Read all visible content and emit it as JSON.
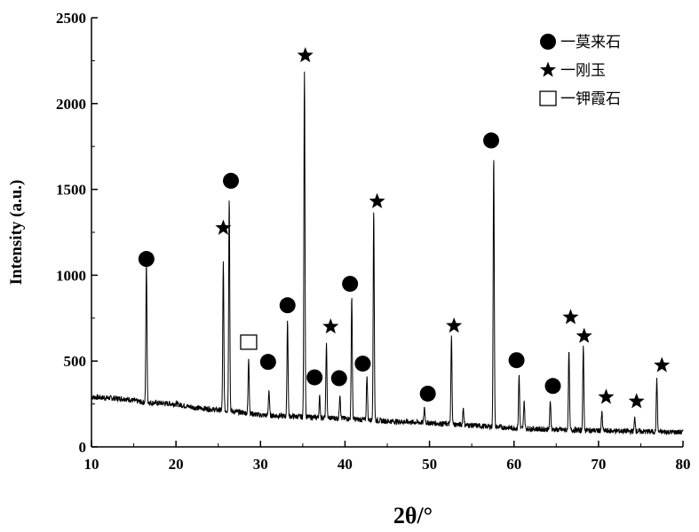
{
  "chart_data": {
    "type": "line",
    "title": "",
    "xlabel": "2θ/°",
    "ylabel": "Intensity (a.u.)",
    "xlim": [
      10,
      80
    ],
    "ylim": [
      0,
      2500
    ],
    "x_ticks": [
      "10",
      "20",
      "30",
      "40",
      "50",
      "60",
      "70",
      "80"
    ],
    "y_ticks": [
      "0",
      "500",
      "1000",
      "1500",
      "2000",
      "2500"
    ],
    "grid": false,
    "legend_position": "top-right",
    "legend": [
      {
        "symbol": "circle",
        "label": "一莫来石"
      },
      {
        "symbol": "star",
        "label": "一刚玉"
      },
      {
        "symbol": "square",
        "label": "一钾霞石"
      }
    ],
    "baseline": [
      [
        10,
        290
      ],
      [
        14,
        280
      ],
      [
        16,
        260
      ],
      [
        20,
        250
      ],
      [
        22,
        230
      ],
      [
        25,
        215
      ],
      [
        28,
        200
      ],
      [
        30,
        185
      ],
      [
        35,
        175
      ],
      [
        40,
        165
      ],
      [
        45,
        150
      ],
      [
        50,
        140
      ],
      [
        55,
        125
      ],
      [
        60,
        110
      ],
      [
        65,
        100
      ],
      [
        70,
        95
      ],
      [
        75,
        90
      ],
      [
        80,
        85
      ]
    ],
    "peaks": [
      {
        "x": 16.5,
        "y": 1070
      },
      {
        "x": 25.6,
        "y": 1070
      },
      {
        "x": 26.3,
        "y": 1460
      },
      {
        "x": 28.6,
        "y": 520
      },
      {
        "x": 31.0,
        "y": 330
      },
      {
        "x": 33.2,
        "y": 740
      },
      {
        "x": 35.2,
        "y": 2200
      },
      {
        "x": 37.0,
        "y": 290
      },
      {
        "x": 37.8,
        "y": 600
      },
      {
        "x": 39.4,
        "y": 310
      },
      {
        "x": 40.8,
        "y": 880
      },
      {
        "x": 42.6,
        "y": 420
      },
      {
        "x": 43.4,
        "y": 1380
      },
      {
        "x": 49.4,
        "y": 230
      },
      {
        "x": 52.6,
        "y": 640
      },
      {
        "x": 54.0,
        "y": 230
      },
      {
        "x": 57.6,
        "y": 1700
      },
      {
        "x": 60.6,
        "y": 420
      },
      {
        "x": 61.2,
        "y": 270
      },
      {
        "x": 64.3,
        "y": 270
      },
      {
        "x": 66.5,
        "y": 560
      },
      {
        "x": 68.2,
        "y": 580
      },
      {
        "x": 70.4,
        "y": 200
      },
      {
        "x": 74.3,
        "y": 170
      },
      {
        "x": 76.9,
        "y": 400
      }
    ],
    "markers": [
      {
        "symbol": "circle",
        "x": 16.5,
        "y": 1095
      },
      {
        "symbol": "star",
        "x": 25.6,
        "y": 1275
      },
      {
        "symbol": "circle",
        "x": 26.5,
        "y": 1550
      },
      {
        "symbol": "square",
        "x": 28.6,
        "y": 610
      },
      {
        "symbol": "circle",
        "x": 30.9,
        "y": 495
      },
      {
        "symbol": "circle",
        "x": 33.2,
        "y": 825
      },
      {
        "symbol": "star",
        "x": 35.3,
        "y": 2280
      },
      {
        "symbol": "circle",
        "x": 36.4,
        "y": 405
      },
      {
        "symbol": "star",
        "x": 38.3,
        "y": 700
      },
      {
        "symbol": "circle",
        "x": 39.3,
        "y": 400
      },
      {
        "symbol": "circle",
        "x": 40.6,
        "y": 950
      },
      {
        "symbol": "circle",
        "x": 42.1,
        "y": 485
      },
      {
        "symbol": "star",
        "x": 43.8,
        "y": 1430
      },
      {
        "symbol": "circle",
        "x": 49.8,
        "y": 310
      },
      {
        "symbol": "star",
        "x": 52.9,
        "y": 705
      },
      {
        "symbol": "circle",
        "x": 57.3,
        "y": 1785
      },
      {
        "symbol": "circle",
        "x": 60.3,
        "y": 505
      },
      {
        "symbol": "circle",
        "x": 64.6,
        "y": 355
      },
      {
        "symbol": "star",
        "x": 66.7,
        "y": 755
      },
      {
        "symbol": "star",
        "x": 68.3,
        "y": 645
      },
      {
        "symbol": "star",
        "x": 70.9,
        "y": 290
      },
      {
        "symbol": "star",
        "x": 74.5,
        "y": 265
      },
      {
        "symbol": "star",
        "x": 77.5,
        "y": 475
      }
    ],
    "colors": {
      "line": "#000000",
      "marker": "#000000"
    }
  }
}
